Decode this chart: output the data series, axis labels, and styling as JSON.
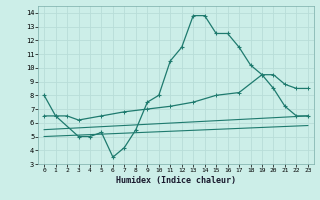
{
  "xlabel": "Humidex (Indice chaleur)",
  "bg_color": "#cceee8",
  "line_color": "#1e7a6e",
  "grid_color": "#b8ddd8",
  "xlim": [
    -0.5,
    23.5
  ],
  "ylim": [
    3,
    14.5
  ],
  "xticks": [
    0,
    1,
    2,
    3,
    4,
    5,
    6,
    7,
    8,
    9,
    10,
    11,
    12,
    13,
    14,
    15,
    16,
    17,
    18,
    19,
    20,
    21,
    22,
    23
  ],
  "yticks": [
    3,
    4,
    5,
    6,
    7,
    8,
    9,
    10,
    11,
    12,
    13,
    14
  ],
  "series1_x": [
    0,
    1,
    3,
    4,
    5,
    6,
    7,
    8,
    9,
    10,
    11,
    12,
    13,
    14,
    15,
    16,
    17,
    18,
    19,
    20,
    21,
    22,
    23
  ],
  "series1_y": [
    8.0,
    6.5,
    5.0,
    5.0,
    5.3,
    3.5,
    4.2,
    5.5,
    7.5,
    8.0,
    10.5,
    11.5,
    13.8,
    13.8,
    12.5,
    12.5,
    11.5,
    10.2,
    9.5,
    8.5,
    7.2,
    6.5,
    6.5
  ],
  "series2_x": [
    0,
    1,
    2,
    3,
    5,
    7,
    9,
    11,
    13,
    15,
    17,
    19,
    20,
    21,
    22,
    23
  ],
  "series2_y": [
    6.5,
    6.5,
    6.5,
    6.2,
    6.5,
    6.8,
    7.0,
    7.2,
    7.5,
    8.0,
    8.2,
    9.5,
    9.5,
    8.8,
    8.5,
    8.5
  ],
  "series3_x": [
    0,
    23
  ],
  "series3_y": [
    5.5,
    6.5
  ],
  "series4_x": [
    0,
    23
  ],
  "series4_y": [
    5.0,
    5.8
  ]
}
